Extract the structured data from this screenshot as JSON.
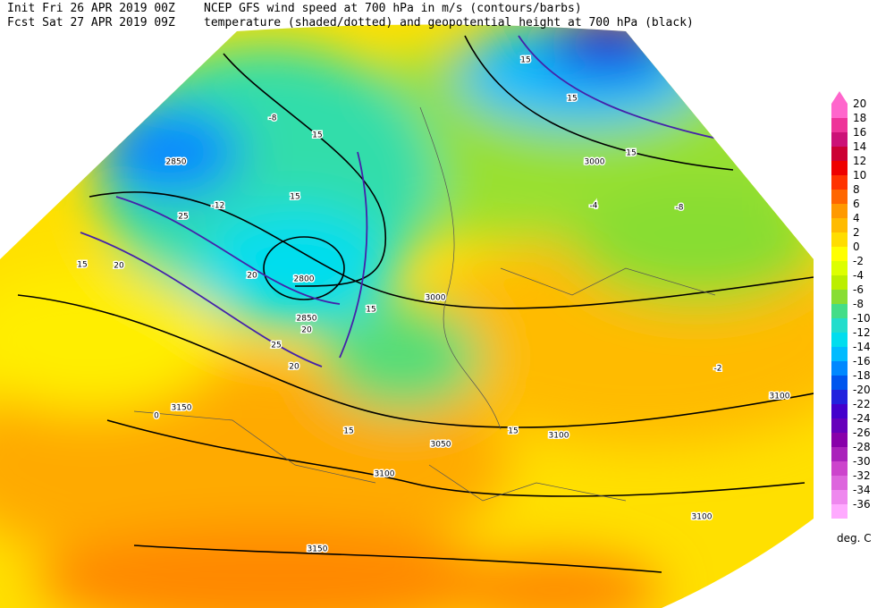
{
  "header": {
    "init": "Init  Fri 26 APR 2019 00Z",
    "fcst": "Fcst Sat 27 APR 2019 09Z",
    "title": "NCEP GFS wind speed at 700 hPa in m/s (contours/barbs)",
    "subtitle": "temperature (shaded/dotted) and geopotential height at 700 hPa (black)"
  },
  "colorbar": {
    "labels": [
      20,
      18,
      16,
      14,
      12,
      10,
      8,
      6,
      4,
      2,
      0,
      -2,
      -4,
      -6,
      -8,
      -10,
      -12,
      -14,
      -16,
      -18,
      -20,
      -22,
      -24,
      -26,
      -28,
      -30,
      -32,
      -34,
      -36
    ],
    "colors": [
      "#ff66cc",
      "#ee3399",
      "#cc1177",
      "#cc0033",
      "#ee0000",
      "#ff3300",
      "#ff6600",
      "#ff9900",
      "#ffbb00",
      "#ffdd00",
      "#ffff00",
      "#ddff00",
      "#bbee00",
      "#88dd33",
      "#44dd88",
      "#22ddcc",
      "#00ddee",
      "#00bbff",
      "#0088ff",
      "#0055ee",
      "#2222dd",
      "#4400cc",
      "#6600bb",
      "#8800aa",
      "#aa22bb",
      "#cc44cc",
      "#dd66dd",
      "#ee88ee",
      "#ffaaff"
    ],
    "unit": "deg. C"
  },
  "map_labels": [
    "2850",
    "3000",
    "3000",
    "15",
    "15",
    "15",
    "15",
    "15",
    "15",
    "15",
    "15",
    "15",
    "20",
    "20",
    "20",
    "20",
    "25",
    "25",
    "-12",
    "-8",
    "-4",
    "-8",
    "-2",
    "0",
    "3050",
    "3100",
    "3100",
    "3100",
    "3100",
    "3150",
    "3150",
    "2800",
    "2850"
  ]
}
